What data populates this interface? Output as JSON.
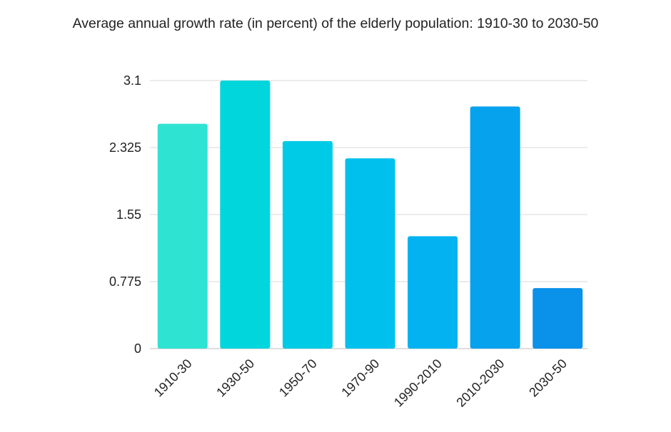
{
  "chart_data": {
    "type": "bar",
    "title": "Average annual growth rate (in percent) of the elderly population: 1910-30 to 2030-50",
    "xlabel": "",
    "ylabel": "",
    "categories": [
      "1910-30",
      "1930-50",
      "1950-70",
      "1970-90",
      "1990-2010",
      "2010-2030",
      "2030-50"
    ],
    "values": [
      2.6,
      3.1,
      2.4,
      2.2,
      1.3,
      2.8,
      0.7
    ],
    "ylim": [
      0,
      3.1
    ],
    "yticks": [
      "0",
      "0.775",
      "1.55",
      "2.325",
      "3.1"
    ],
    "grid": true,
    "legend": "none",
    "colors": [
      "#2fe3d3",
      "#00d6dc",
      "#00cbe6",
      "#00c1ee",
      "#03b3f1",
      "#06a2ee",
      "#0a91ea"
    ]
  }
}
